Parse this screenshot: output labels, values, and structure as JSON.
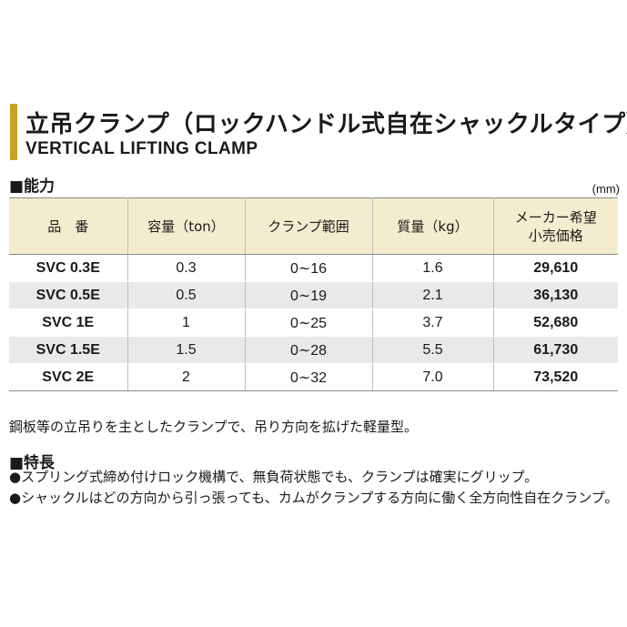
{
  "title": {
    "jp": "立吊クランプ（ロックハンドル式自在シャックルタイプ）",
    "en": "VERTICAL LIFTING CLAMP"
  },
  "capacity": {
    "heading": "■能力",
    "unit": "(mm)",
    "columns": [
      "品　番",
      "容量（ton）",
      "クランプ範囲",
      "質量（kg）",
      "メーカー希望\n小売価格"
    ],
    "rows": [
      [
        "SVC 0.3E",
        "0.3",
        "0∼16",
        "1.6",
        "29,610"
      ],
      [
        "SVC 0.5E",
        "0.5",
        "0∼19",
        "2.1",
        "36,130"
      ],
      [
        "SVC 1E",
        "1",
        "0∼25",
        "3.7",
        "52,680"
      ],
      [
        "SVC 1.5E",
        "1.5",
        "0∼28",
        "5.5",
        "61,730"
      ],
      [
        "SVC 2E",
        "2",
        "0∼32",
        "7.0",
        "73,520"
      ]
    ]
  },
  "description": "鋼板等の立吊りを主としたクランプで、吊り方向を拡げた軽量型。",
  "features": {
    "heading": "■特長",
    "items": [
      "●スプリング式締め付けロック機構で、無負荷状態でも、クランプは確実にグリップ。",
      "●シャックルはどの方向から引っ張っても、カムがクランプする方向に働く全方向性自在クランプ。"
    ]
  },
  "colors": {
    "accent_bar": "#c9a227",
    "header_bg": "#f4eccf",
    "stripe_bg": "#e9e9e9"
  }
}
